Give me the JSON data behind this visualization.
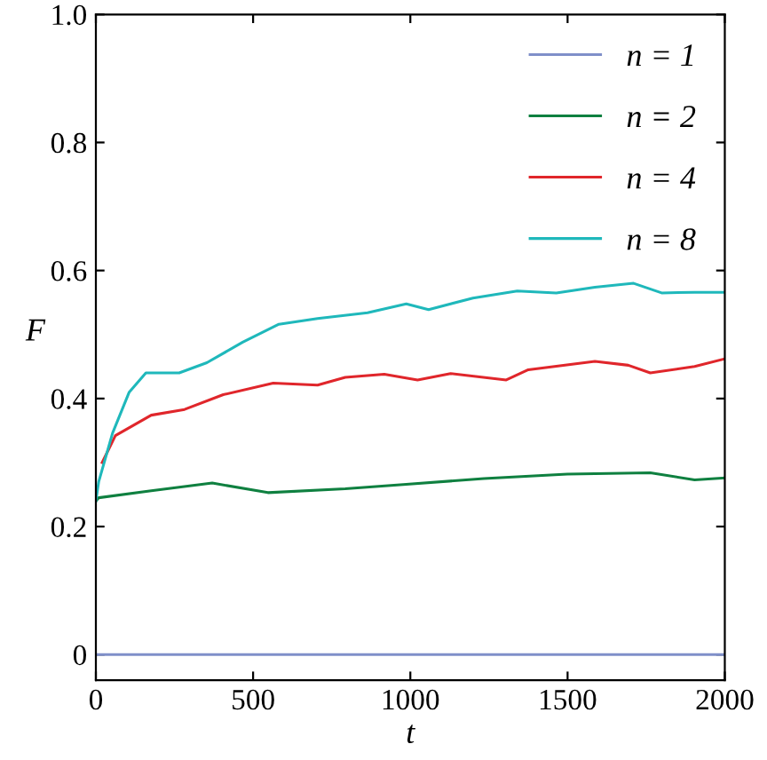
{
  "chart_data": {
    "type": "line",
    "xlabel": "t",
    "ylabel": "F",
    "xlim": [
      0,
      2000
    ],
    "ylim": [
      -0.04,
      1
    ],
    "xticks": [
      0,
      500,
      1000,
      1500,
      2000
    ],
    "yticks": [
      0,
      0.2,
      0.4,
      0.6,
      0.8,
      {
        "value": 1,
        "label": "1.0"
      }
    ],
    "grid": false,
    "legend": "top right",
    "marker": "none",
    "line_style": "solid",
    "series": [
      {
        "name": "n = 1",
        "color": "#7f8fc9",
        "x": [
          0,
          2000
        ],
        "values": [
          0,
          0
        ]
      },
      {
        "name": "n = 2",
        "color": "#0f8040",
        "x": [
          0,
          9,
          176,
          370,
          547,
          793,
          987,
          1234,
          1499,
          1763,
          1904,
          2000
        ],
        "values": [
          0.24,
          0.245,
          0.256,
          0.268,
          0.253,
          0.259,
          0.266,
          0.275,
          0.282,
          0.284,
          0.273,
          0.276
        ]
      },
      {
        "name": "n = 4",
        "color": "#e0262b",
        "x": [
          20,
          62,
          176,
          282,
          405,
          564,
          705,
          793,
          917,
          1023,
          1128,
          1305,
          1375,
          1587,
          1693,
          1763,
          1904,
          2000
        ],
        "values": [
          0.3,
          0.342,
          0.374,
          0.383,
          0.406,
          0.424,
          0.421,
          0.433,
          0.438,
          0.429,
          0.439,
          0.429,
          0.445,
          0.458,
          0.452,
          0.44,
          0.45,
          0.462
        ]
      },
      {
        "name": "n = 8",
        "color": "#1fb8bb",
        "x": [
          0,
          9,
          53,
          106,
          159,
          265,
          353,
          467,
          582,
          705,
          864,
          987,
          1058,
          1199,
          1340,
          1464,
          1587,
          1710,
          1799,
          1904,
          2000
        ],
        "values": [
          0.24,
          0.27,
          0.346,
          0.41,
          0.44,
          0.44,
          0.456,
          0.488,
          0.516,
          0.525,
          0.534,
          0.548,
          0.539,
          0.557,
          0.568,
          0.565,
          0.574,
          0.58,
          0.565,
          0.566,
          0.566
        ]
      }
    ]
  }
}
